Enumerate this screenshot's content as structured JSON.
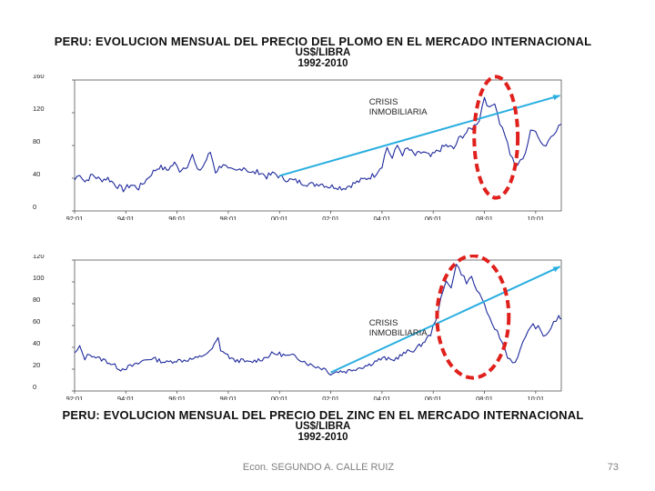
{
  "slide": {
    "footer": "Econ. SEGUNDO A. CALLE RUIZ",
    "page_number": "73"
  },
  "chart_data": [
    {
      "type": "line",
      "title_lines": [
        "PERU: EVOLUCION MENSUAL DEL PRECIO DEL PLOMO EN EL MERCADO INTERNACIONAL",
        "US$/LIBRA",
        "1992-2010"
      ],
      "x_ticks": [
        "92:01",
        "94:01",
        "96:01",
        "98:01",
        "00:01",
        "02:01",
        "04:01",
        "06:01",
        "08:01",
        "10:01"
      ],
      "y_ticks": [
        "0",
        "40",
        "80",
        "120",
        "160"
      ],
      "ylim": [
        0,
        160
      ],
      "xlim": [
        1992.0,
        2011.0
      ],
      "series_color": "#1f2a9c",
      "trend_color": "#29aee0",
      "ellipse_color": "#e0201c",
      "annotation_lines": [
        "CRISIS",
        "INMOBILIARIA"
      ],
      "anchors": [
        [
          1992.0,
          38
        ],
        [
          1992.2,
          46
        ],
        [
          1992.4,
          36
        ],
        [
          1992.7,
          44
        ],
        [
          1993.0,
          38
        ],
        [
          1993.3,
          40
        ],
        [
          1993.6,
          32
        ],
        [
          1993.9,
          26
        ],
        [
          1994.2,
          32
        ],
        [
          1994.5,
          28
        ],
        [
          1994.8,
          38
        ],
        [
          1995.0,
          46
        ],
        [
          1995.3,
          54
        ],
        [
          1995.6,
          50
        ],
        [
          1995.9,
          58
        ],
        [
          1996.1,
          50
        ],
        [
          1996.4,
          56
        ],
        [
          1996.6,
          68
        ],
        [
          1996.8,
          48
        ],
        [
          1997.0,
          54
        ],
        [
          1997.3,
          72
        ],
        [
          1997.5,
          48
        ],
        [
          1997.8,
          58
        ],
        [
          1998.0,
          50
        ],
        [
          1998.3,
          48
        ],
        [
          1998.6,
          54
        ],
        [
          1998.9,
          46
        ],
        [
          1999.2,
          48
        ],
        [
          1999.5,
          42
        ],
        [
          1999.8,
          46
        ],
        [
          2000.1,
          40
        ],
        [
          2000.4,
          38
        ],
        [
          2000.7,
          36
        ],
        [
          2001.0,
          34
        ],
        [
          2001.3,
          32
        ],
        [
          2001.6,
          34
        ],
        [
          2001.9,
          30
        ],
        [
          2002.2,
          30
        ],
        [
          2002.5,
          28
        ],
        [
          2002.8,
          32
        ],
        [
          2003.1,
          36
        ],
        [
          2003.4,
          40
        ],
        [
          2003.7,
          44
        ],
        [
          2004.0,
          56
        ],
        [
          2004.2,
          78
        ],
        [
          2004.4,
          64
        ],
        [
          2004.6,
          80
        ],
        [
          2004.8,
          70
        ],
        [
          2005.0,
          76
        ],
        [
          2005.3,
          68
        ],
        [
          2005.6,
          72
        ],
        [
          2005.9,
          66
        ],
        [
          2006.2,
          74
        ],
        [
          2006.5,
          80
        ],
        [
          2006.8,
          76
        ],
        [
          2007.0,
          88
        ],
        [
          2007.3,
          96
        ],
        [
          2007.6,
          104
        ],
        [
          2007.8,
          112
        ],
        [
          2008.0,
          140
        ],
        [
          2008.2,
          124
        ],
        [
          2008.4,
          134
        ],
        [
          2008.6,
          108
        ],
        [
          2008.8,
          94
        ],
        [
          2009.0,
          70
        ],
        [
          2009.2,
          54
        ],
        [
          2009.4,
          60
        ],
        [
          2009.6,
          72
        ],
        [
          2009.8,
          96
        ],
        [
          2010.0,
          100
        ],
        [
          2010.2,
          84
        ],
        [
          2010.4,
          80
        ],
        [
          2010.6,
          92
        ],
        [
          2010.8,
          100
        ],
        [
          2011.0,
          106
        ]
      ],
      "trend": [
        [
          2000.0,
          43
        ],
        [
          2010.95,
          141
        ]
      ],
      "ellipse": {
        "cx": 2008.45,
        "cy": 90,
        "rx": 0.85,
        "ry": 74
      },
      "annotation_at": [
        2003.0,
        130
      ]
    },
    {
      "type": "line",
      "title_lines": [
        "PERU: EVOLUCION MENSUAL DEL PRECIO DEL ZINC EN EL MERCADO INTERNACIONAL",
        "US$/LIBRA",
        "1992-2010"
      ],
      "x_ticks": [
        "92:01",
        "94:01",
        "96:01",
        "98:01",
        "00:01",
        "02:01",
        "04:01",
        "06:01",
        "08:01",
        "10:01"
      ],
      "y_ticks": [
        "0",
        "20",
        "40",
        "60",
        "80",
        "100",
        "120"
      ],
      "ylim": [
        0,
        120
      ],
      "xlim": [
        1992.0,
        2011.0
      ],
      "series_color": "#1f2a9c",
      "trend_color": "#29aee0",
      "ellipse_color": "#e0201c",
      "annotation_lines": [
        "CRISIS",
        "INMOBILIARIA"
      ],
      "anchors": [
        [
          1992.0,
          34
        ],
        [
          1992.2,
          40
        ],
        [
          1992.4,
          30
        ],
        [
          1992.6,
          34
        ],
        [
          1992.9,
          30
        ],
        [
          1993.2,
          28
        ],
        [
          1993.5,
          24
        ],
        [
          1993.8,
          20
        ],
        [
          1994.1,
          22
        ],
        [
          1994.4,
          24
        ],
        [
          1994.7,
          28
        ],
        [
          1995.0,
          30
        ],
        [
          1995.3,
          28
        ],
        [
          1995.6,
          26
        ],
        [
          1995.9,
          28
        ],
        [
          1996.2,
          28
        ],
        [
          1996.5,
          29
        ],
        [
          1996.8,
          30
        ],
        [
          1997.1,
          34
        ],
        [
          1997.3,
          36
        ],
        [
          1997.6,
          48
        ],
        [
          1997.7,
          38
        ],
        [
          1997.9,
          34
        ],
        [
          1998.2,
          28
        ],
        [
          1998.5,
          28
        ],
        [
          1998.8,
          26
        ],
        [
          1999.1,
          28
        ],
        [
          1999.4,
          30
        ],
        [
          1999.7,
          34
        ],
        [
          2000.0,
          34
        ],
        [
          2000.3,
          32
        ],
        [
          2000.6,
          32
        ],
        [
          2000.9,
          28
        ],
        [
          2001.2,
          24
        ],
        [
          2001.5,
          22
        ],
        [
          2001.8,
          20
        ],
        [
          2002.0,
          16
        ],
        [
          2002.3,
          18
        ],
        [
          2002.6,
          18
        ],
        [
          2002.9,
          20
        ],
        [
          2003.2,
          22
        ],
        [
          2003.5,
          24
        ],
        [
          2003.8,
          28
        ],
        [
          2004.1,
          30
        ],
        [
          2004.4,
          28
        ],
        [
          2004.7,
          32
        ],
        [
          2005.0,
          36
        ],
        [
          2005.3,
          38
        ],
        [
          2005.6,
          44
        ],
        [
          2005.9,
          52
        ],
        [
          2006.1,
          66
        ],
        [
          2006.3,
          84
        ],
        [
          2006.5,
          100
        ],
        [
          2006.7,
          96
        ],
        [
          2006.9,
          116
        ],
        [
          2007.1,
          108
        ],
        [
          2007.3,
          100
        ],
        [
          2007.5,
          104
        ],
        [
          2007.7,
          92
        ],
        [
          2007.9,
          86
        ],
        [
          2008.1,
          70
        ],
        [
          2008.3,
          62
        ],
        [
          2008.5,
          54
        ],
        [
          2008.7,
          44
        ],
        [
          2008.9,
          32
        ],
        [
          2009.1,
          26
        ],
        [
          2009.3,
          30
        ],
        [
          2009.5,
          44
        ],
        [
          2009.7,
          56
        ],
        [
          2009.9,
          60
        ],
        [
          2010.1,
          58
        ],
        [
          2010.3,
          50
        ],
        [
          2010.5,
          54
        ],
        [
          2010.7,
          62
        ],
        [
          2010.9,
          68
        ],
        [
          2011.0,
          66
        ]
      ],
      "trend": [
        [
          2002.0,
          17
        ],
        [
          2010.95,
          114
        ]
      ],
      "ellipse": {
        "cx": 2007.55,
        "cy": 68,
        "rx": 1.4,
        "ry": 56
      },
      "annotation_at": [
        2003.0,
        60
      ]
    }
  ]
}
